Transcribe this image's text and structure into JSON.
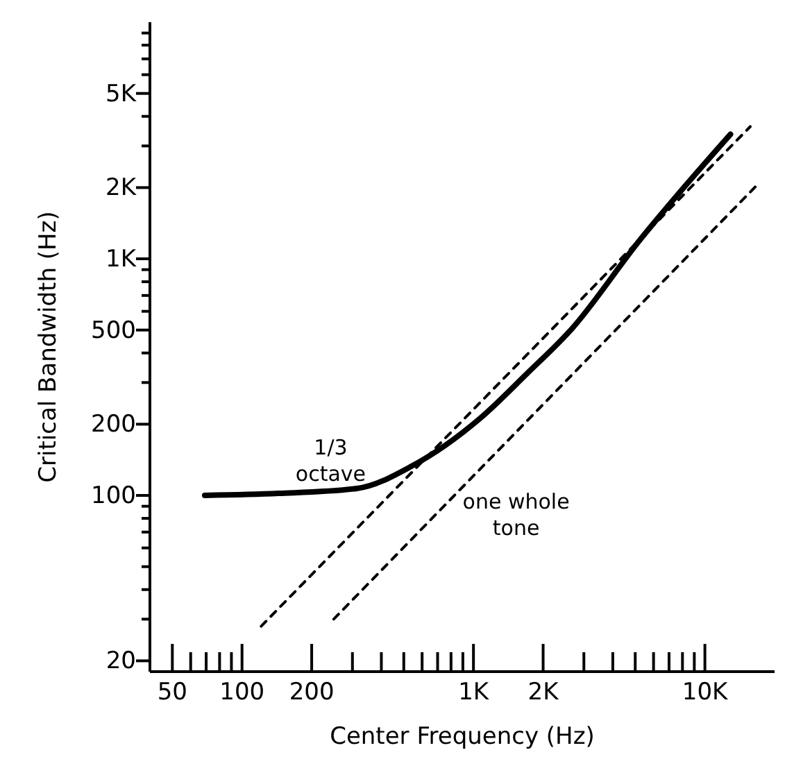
{
  "chart_data": {
    "type": "line",
    "xlabel": "Center Frequency (Hz)",
    "ylabel": "Critical Bandwidth (Hz)",
    "log": "xy",
    "grid": false,
    "legend": false,
    "marker": "none",
    "xlim": [
      40,
      20000
    ],
    "ylim": [
      18,
      10000
    ],
    "xticks": [
      50,
      {
        "value": 60,
        "label": null
      },
      {
        "value": 70,
        "label": null
      },
      {
        "value": 80,
        "label": null
      },
      {
        "value": 90,
        "label": null
      },
      100,
      200,
      {
        "value": 300,
        "label": null
      },
      {
        "value": 400,
        "label": null
      },
      {
        "value": 500,
        "label": null
      },
      {
        "value": 600,
        "label": null
      },
      {
        "value": 700,
        "label": null
      },
      {
        "value": 800,
        "label": null
      },
      {
        "value": 900,
        "label": null
      },
      {
        "value": 1000,
        "label": "1K"
      },
      {
        "value": 2000,
        "label": "2K"
      },
      {
        "value": 3000,
        "label": null
      },
      {
        "value": 4000,
        "label": null
      },
      {
        "value": 5000,
        "label": null
      },
      {
        "value": 6000,
        "label": null
      },
      {
        "value": 7000,
        "label": null
      },
      {
        "value": 8000,
        "label": null
      },
      {
        "value": 9000,
        "label": null
      },
      {
        "value": 10000,
        "label": "10K"
      }
    ],
    "yticks": [
      20,
      {
        "value": 30,
        "label": null
      },
      {
        "value": 40,
        "label": null
      },
      {
        "value": 50,
        "label": null
      },
      {
        "value": 60,
        "label": null
      },
      {
        "value": 70,
        "label": null
      },
      {
        "value": 80,
        "label": null
      },
      {
        "value": 90,
        "label": null
      },
      100,
      200,
      {
        "value": 300,
        "label": null
      },
      {
        "value": 400,
        "label": null
      },
      500,
      {
        "value": 600,
        "label": null
      },
      {
        "value": 700,
        "label": null
      },
      {
        "value": 800,
        "label": null
      },
      {
        "value": 900,
        "label": null
      },
      {
        "value": 1000,
        "label": "1K"
      },
      {
        "value": 2000,
        "label": "2K"
      },
      {
        "value": 3000,
        "label": null
      },
      {
        "value": 4000,
        "label": null
      },
      {
        "value": 5000,
        "label": "5K"
      },
      {
        "value": 6000,
        "label": null
      },
      {
        "value": 7000,
        "label": null
      },
      {
        "value": 8000,
        "label": null
      },
      {
        "value": 9000,
        "label": null
      }
    ],
    "series": [
      {
        "color": "#000000",
        "line_style": "solid",
        "x": [
          69,
          144,
          314,
          541,
          1070,
          1680,
          2670,
          5270,
          8250,
          12900
        ],
        "values": [
          100,
          102,
          107,
          133,
          212,
          323,
          508,
          1210,
          2040,
          3360
        ]
      },
      {
        "name": "1/3 octave",
        "color": "#000000",
        "line_style": "dashed",
        "x": [
          121,
          15700
        ],
        "values": [
          28,
          3620
        ]
      },
      {
        "name": "one whole tone",
        "color": "#000000",
        "line_style": "dashed",
        "x": [
          249,
          16800
        ],
        "values": [
          30,
          2050
        ]
      }
    ]
  }
}
